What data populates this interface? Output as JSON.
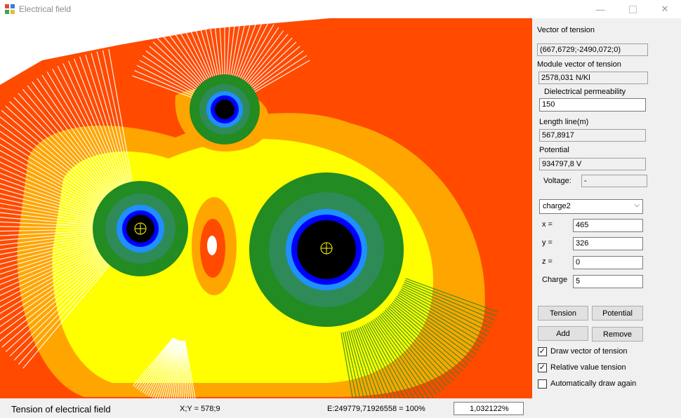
{
  "window": {
    "title": "Electrical field",
    "controls": {
      "minimize": "—",
      "close": "✕"
    }
  },
  "colors": {
    "level1": "#ff4a00",
    "level2": "#ffa500",
    "level3": "#ffff00",
    "level4": "#228b22",
    "level5": "#2e8b57",
    "level6": "#1e90ff",
    "level7": "#0000ff",
    "core": "#000000",
    "field_lines": "#ffffff",
    "line_markers": "#2e8b22"
  },
  "panel": {
    "vector_label": "Vector of tension",
    "vector_value": "(667,6729;-2490,072;0)",
    "module_label": "Module vector of tension",
    "module_value": "2578,031 N/Kl",
    "permeability_label": "Dielectrical permeability",
    "permeability_value": "150",
    "length_label": "Length line(m)",
    "length_value": "567,8917",
    "potential_label": "Potential",
    "potential_value": "934797,8 V",
    "voltage_label": "Voltage:",
    "voltage_value": "-",
    "charge_select": "charge2",
    "x_label": "x =",
    "x_value": "465",
    "y_label": "y =",
    "y_value": "326",
    "z_label": "z =",
    "z_value": "0",
    "charge_label": "Charge",
    "charge_value": "5",
    "tension_button": "Tension",
    "potential_button": "Potential",
    "add_button": "Add",
    "remove_button": "Remove",
    "checkboxes": [
      {
        "label": "Draw vector of tension",
        "checked": true
      },
      {
        "label": "Relative value tension",
        "checked": true
      },
      {
        "label": "Automatically draw again",
        "checked": false
      }
    ]
  },
  "status": {
    "main": "Tension of electrical field",
    "xy": "X;Y = 578;9",
    "energy": "E:249779,71926558 = 100%",
    "zoom": "1,032122%"
  }
}
